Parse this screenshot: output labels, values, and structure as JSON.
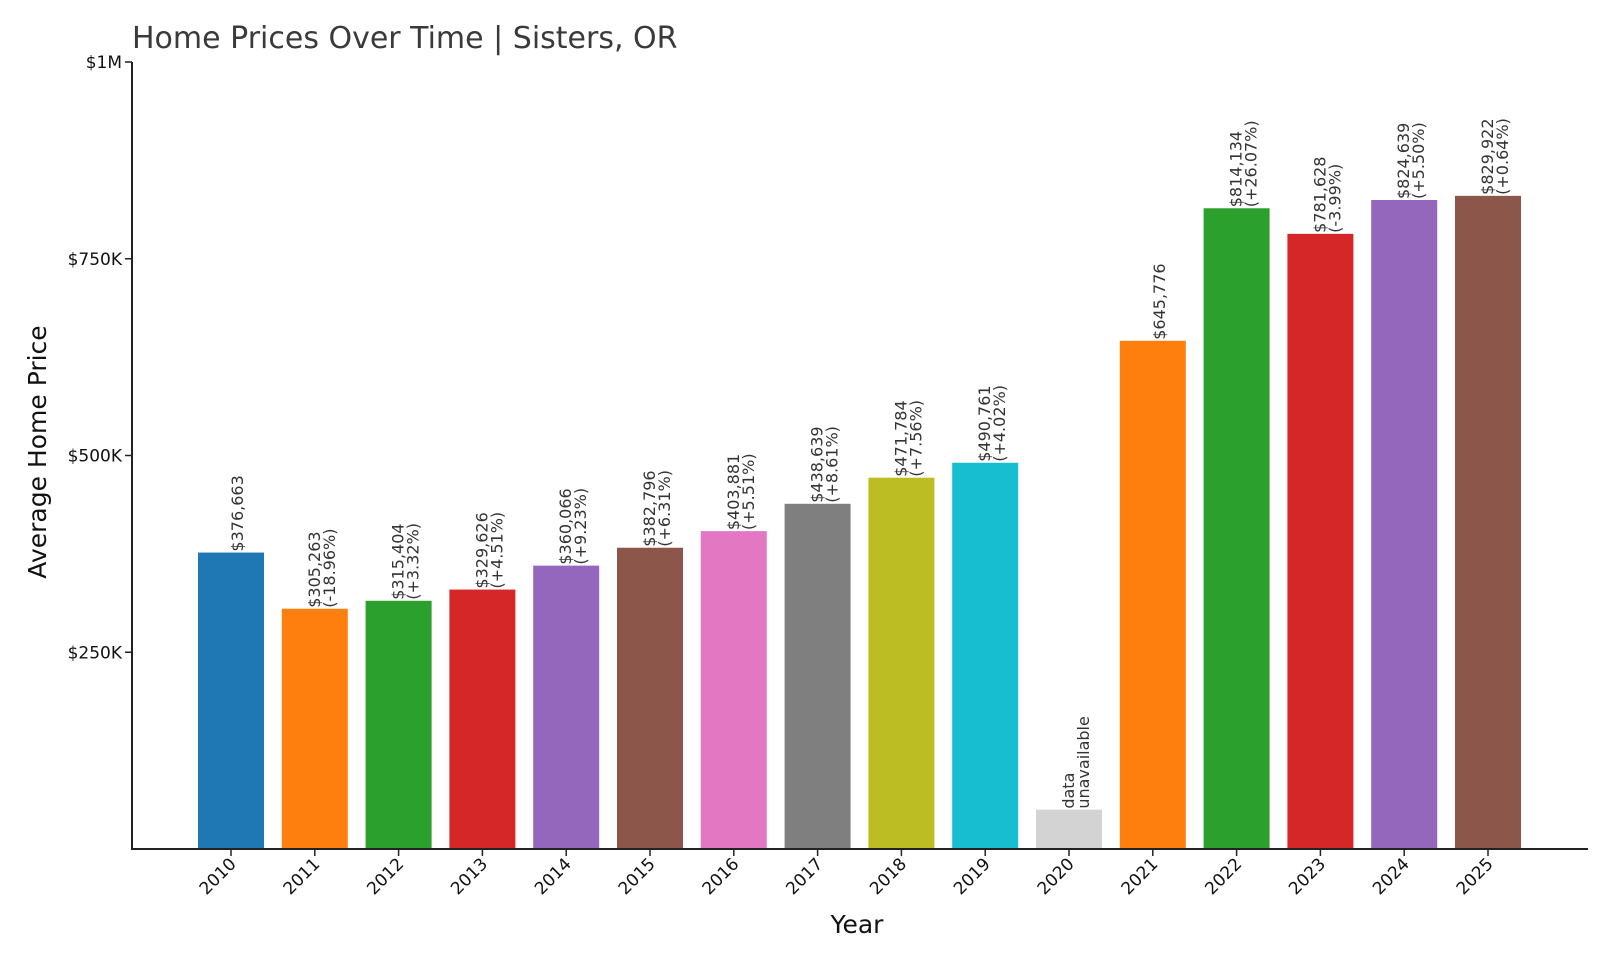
{
  "chart_data": {
    "type": "bar",
    "title": "Home Prices Over Time | Sisters, OR",
    "xlabel": "Year",
    "ylabel": "Average Home Price",
    "ylim": [
      0,
      1000000
    ],
    "yticks": [
      {
        "value": 250000,
        "label": "$250K"
      },
      {
        "value": 500000,
        "label": "$500K"
      },
      {
        "value": 750000,
        "label": "$750K"
      },
      {
        "value": 1000000,
        "label": "$1M"
      }
    ],
    "grid": false,
    "legend": "none",
    "categories": [
      "2010",
      "2011",
      "2012",
      "2013",
      "2014",
      "2015",
      "2016",
      "2017",
      "2018",
      "2019",
      "2020",
      "2021",
      "2022",
      "2023",
      "2024",
      "2025"
    ],
    "values": [
      376663,
      305263,
      315404,
      329626,
      360066,
      382796,
      403881,
      438639,
      471784,
      490761,
      null,
      645776,
      814134,
      781628,
      824639,
      829922
    ],
    "value_labels": [
      "$376,663",
      "$305,263",
      "$315,404",
      "$329,626",
      "$360,066",
      "$382,796",
      "$403,881",
      "$438,639",
      "$471,784",
      "$490,761",
      "data",
      "$645,776",
      "$814,134",
      "$781,628",
      "$824,639",
      "$829,922"
    ],
    "change_labels": [
      "",
      "(-18.96%)",
      "(+3.32%)",
      "(+4.51%)",
      "(+9.23%)",
      "(+6.31%)",
      "(+5.51%)",
      "(+8.61%)",
      "(+7.56%)",
      "(+4.02%)",
      "unavailable",
      "",
      "(+26.07%)",
      "(-3.99%)",
      "(+5.50%)",
      "(+0.64%)"
    ],
    "missing_bar_value": 50000,
    "colors": [
      "#1f77b4",
      "#ff7f0e",
      "#2ca02c",
      "#d62728",
      "#9467bd",
      "#8c564b",
      "#e377c2",
      "#7f7f7f",
      "#bcbd22",
      "#17becf",
      "#d3d3d3",
      "#ff7f0e",
      "#2ca02c",
      "#d62728",
      "#9467bd",
      "#8c564b"
    ]
  }
}
